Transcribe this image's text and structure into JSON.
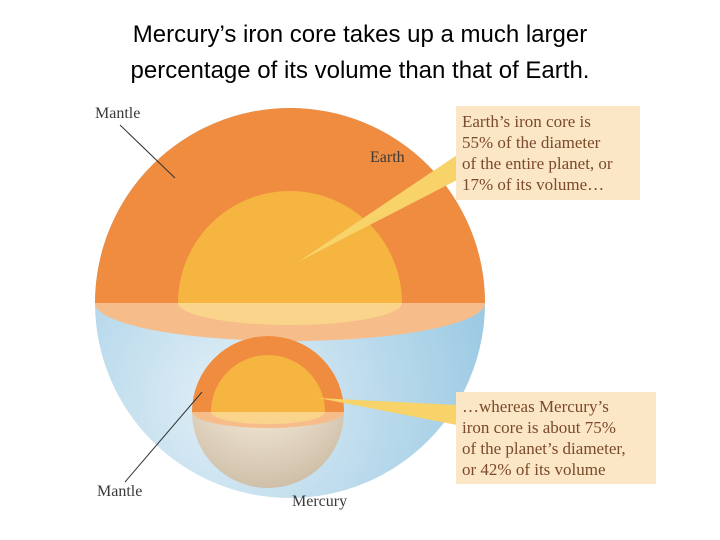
{
  "title": {
    "lines": [
      "Mercury’s iron core takes up a much larger",
      "percentage of its volume than that of Earth."
    ]
  },
  "labels": {
    "earth_mantle": "Mantle",
    "earth": "Earth",
    "mercury_mantle": "Mantle",
    "mercury": "Mercury"
  },
  "callouts": {
    "earth": [
      "Earth’s iron core is",
      "55% of the diameter",
      "of the entire planet, or",
      "17% of its volume…"
    ],
    "mercury": [
      "…whereas Mercury’s",
      "iron core is about 75%",
      "of the planet’s diameter,",
      "or 42% of its volume"
    ]
  }
}
